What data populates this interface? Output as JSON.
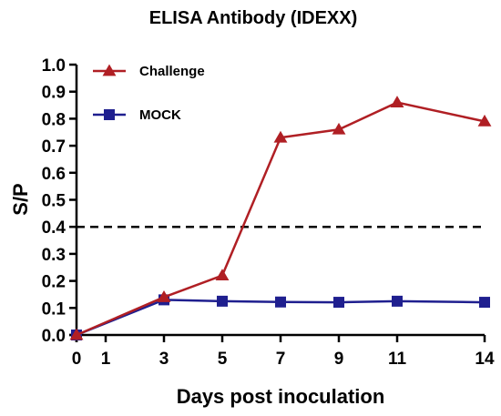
{
  "chart_data": {
    "type": "line",
    "title": "ELISA Antibody (IDEXX)",
    "xlabel": "Days post inoculation",
    "ylabel": "S/P",
    "xlim": [
      0,
      14
    ],
    "ylim": [
      0.0,
      1.0
    ],
    "x_ticks": [
      0,
      1,
      3,
      5,
      7,
      9,
      11,
      14
    ],
    "x_tick_labels": [
      "0",
      "1",
      "3",
      "5",
      "7",
      "9",
      "11",
      "14"
    ],
    "y_ticks": [
      0.0,
      0.1,
      0.2,
      0.3,
      0.4,
      0.5,
      0.6,
      0.7,
      0.8,
      0.9,
      1.0
    ],
    "y_tick_labels": [
      "0.0",
      "0.1",
      "0.2",
      "0.3",
      "0.4",
      "0.5",
      "0.6",
      "0.7",
      "0.8",
      "0.9",
      "1.0"
    ],
    "grid": false,
    "legend_position": "top-left",
    "series": [
      {
        "name": "Challenge",
        "color": "#b01f24",
        "marker": "triangle",
        "x": [
          0,
          3,
          5,
          7,
          9,
          11,
          14
        ],
        "y": [
          0.0,
          0.14,
          0.22,
          0.73,
          0.76,
          0.86,
          0.79
        ]
      },
      {
        "name": "MOCK",
        "color": "#1f1f8f",
        "marker": "square",
        "x": [
          0,
          3,
          5,
          7,
          9,
          11,
          14
        ],
        "y": [
          0.0,
          0.13,
          0.125,
          0.122,
          0.121,
          0.125,
          0.121
        ]
      }
    ],
    "reference_line": {
      "y": 0.4,
      "style": "dashed",
      "color": "#000000"
    }
  }
}
